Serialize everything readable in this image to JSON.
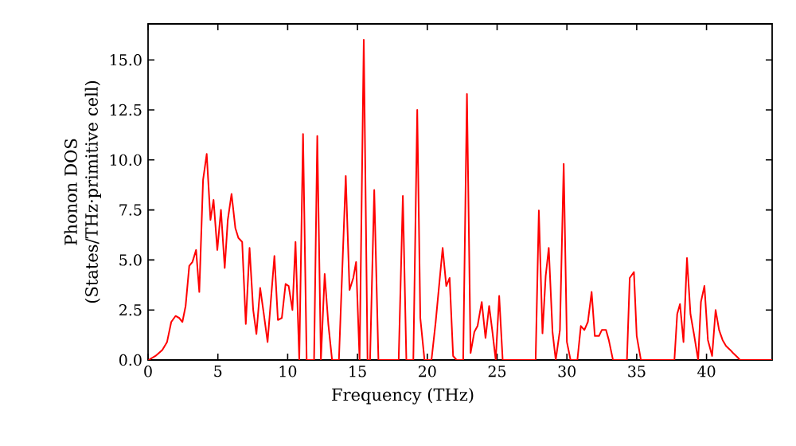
{
  "chart_data": {
    "type": "line",
    "xlabel": "Frequency (THz)",
    "ylabel": "Phonon DOS (States/THz·primitive cell)",
    "xlim": [
      0,
      44.7
    ],
    "ylim": [
      0,
      16.8
    ],
    "xticks": [
      0,
      5,
      10,
      15,
      20,
      25,
      30,
      35,
      40
    ],
    "yticks": [
      {
        "value": 0,
        "label": "0.0"
      },
      {
        "value": 2.5,
        "label": "2.5"
      },
      {
        "value": 5,
        "label": "5.0"
      },
      {
        "value": 7.5,
        "label": "7.5"
      },
      {
        "value": 10,
        "label": "10.0"
      },
      {
        "value": 12.5,
        "label": "12.5"
      },
      {
        "value": 15,
        "label": "15.0"
      }
    ],
    "grid": false,
    "marker": "none",
    "line_style": "solid",
    "series": [
      {
        "color": "#ff0000",
        "x": [
          0.03,
          0.53,
          1.02,
          1.36,
          1.66,
          1.97,
          2.23,
          2.46,
          2.69,
          2.95,
          3.18,
          3.44,
          3.67,
          3.94,
          4.2,
          4.47,
          4.69,
          4.96,
          5.22,
          5.49,
          5.71,
          5.98,
          6.25,
          6.47,
          6.74,
          7.0,
          7.27,
          7.53,
          7.76,
          8.03,
          8.29,
          8.56,
          9.05,
          9.3,
          9.58,
          9.85,
          10.07,
          10.34,
          10.56,
          10.83,
          11.1,
          11.36,
          11.89,
          12.12,
          12.38,
          12.65,
          12.91,
          13.18,
          13.67,
          14.16,
          14.43,
          14.7,
          14.9,
          15.15,
          15.45,
          15.72,
          15.9,
          16.2,
          16.5,
          17.95,
          18.25,
          18.5,
          19.0,
          19.28,
          19.5,
          19.8,
          20.3,
          20.6,
          21.1,
          21.36,
          21.6,
          21.85,
          22.1,
          22.57,
          22.84,
          23.1,
          23.37,
          23.6,
          23.9,
          24.17,
          24.43,
          24.65,
          24.9,
          25.15,
          25.4,
          27.76,
          27.99,
          28.25,
          28.48,
          28.7,
          28.97,
          29.2,
          29.5,
          29.77,
          30.0,
          30.26,
          30.75,
          31.0,
          31.25,
          31.5,
          31.77,
          32.0,
          32.3,
          32.5,
          32.8,
          33.0,
          33.3,
          34.3,
          34.5,
          34.8,
          35.0,
          35.3,
          37.7,
          37.9,
          38.1,
          38.35,
          38.6,
          38.85,
          39.1,
          39.4,
          39.6,
          39.85,
          40.1,
          40.4,
          40.65,
          40.9,
          41.15,
          41.4,
          41.7,
          41.9,
          42.2,
          42.4,
          44.7
        ],
        "values": [
          0,
          0.2,
          0.5,
          0.9,
          1.9,
          2.2,
          2.1,
          1.9,
          2.7,
          4.7,
          4.9,
          5.5,
          3.4,
          9.0,
          10.3,
          7.0,
          8.0,
          5.5,
          7.5,
          4.6,
          7.0,
          8.3,
          6.6,
          6.1,
          5.9,
          1.8,
          5.6,
          2.5,
          1.3,
          3.6,
          2.3,
          0.9,
          5.2,
          2.0,
          2.1,
          3.8,
          3.7,
          2.5,
          5.9,
          0,
          11.3,
          0,
          0,
          11.2,
          0,
          4.3,
          1.8,
          0,
          0,
          9.2,
          3.5,
          4.1,
          4.9,
          0,
          16.0,
          0,
          0,
          8.5,
          0,
          0,
          8.2,
          0,
          0,
          12.5,
          2.1,
          0,
          0,
          1.9,
          5.6,
          3.7,
          4.1,
          0.2,
          0,
          0,
          13.3,
          0.35,
          1.4,
          1.7,
          2.9,
          1.1,
          2.7,
          1.5,
          0,
          3.2,
          0,
          0,
          7.47,
          1.33,
          4.2,
          5.6,
          1.4,
          0,
          1.5,
          9.8,
          0.9,
          0,
          0,
          1.7,
          1.5,
          1.9,
          3.4,
          1.2,
          1.2,
          1.5,
          1.5,
          1.0,
          0,
          0,
          4.1,
          4.4,
          1.2,
          0,
          0,
          2.3,
          2.8,
          0.9,
          5.1,
          2.3,
          1.3,
          0,
          2.9,
          3.7,
          1.0,
          0.2,
          2.5,
          1.5,
          1.0,
          0.7,
          0.5,
          0.35,
          0.15,
          0,
          0
        ]
      }
    ]
  }
}
